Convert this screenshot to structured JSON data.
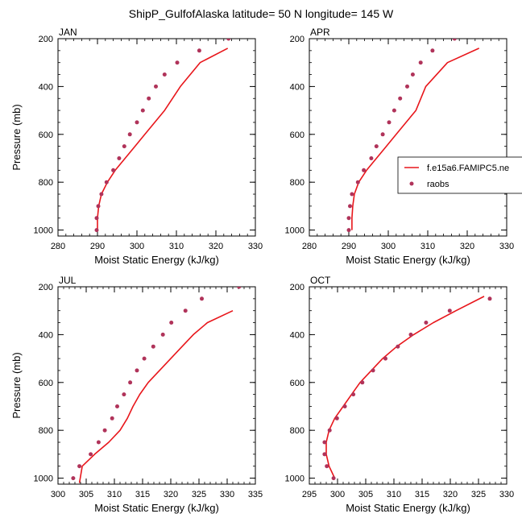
{
  "title": "ShipP_GulfofAlaska  latitude= 50 N longitude= 145 W",
  "colors": {
    "model": "#e8161b",
    "obs": "#b0335a"
  },
  "legend": {
    "entries": [
      {
        "label": "f.e15a6.FAMIPC5.ne",
        "kind": "line"
      },
      {
        "label": "raobs",
        "kind": "marker"
      }
    ]
  },
  "chart_data": [
    {
      "type": "line",
      "panel": "JAN",
      "xlabel": "Moist Static Energy (kJ/kg)",
      "ylabel": "Pressure (mb)",
      "xlim": [
        280,
        330
      ],
      "ylim": [
        200,
        1025
      ],
      "y_inverted": true,
      "xticks": [
        280,
        290,
        300,
        310,
        320,
        330
      ],
      "yticks": [
        200,
        400,
        600,
        800,
        1000
      ],
      "series": [
        {
          "name": "f.e15a6.FAMIPC5.ne",
          "kind": "line",
          "x": [
            290.0,
            290.0,
            290.3,
            291.0,
            292.5,
            294.5,
            297.0,
            299.5,
            302.0,
            304.5,
            307.0,
            311.0,
            316.0,
            323.0
          ],
          "y": [
            1000,
            950,
            900,
            850,
            800,
            750,
            700,
            650,
            600,
            550,
            500,
            400,
            300,
            240
          ]
        },
        {
          "name": "raobs",
          "kind": "scatter",
          "x": [
            289.8,
            289.8,
            290.2,
            291.0,
            292.3,
            294.0,
            295.5,
            296.8,
            298.2,
            300.0,
            301.5,
            303.0,
            304.8,
            307.0,
            310.2,
            315.8,
            323.2
          ],
          "y": [
            1000,
            950,
            900,
            850,
            800,
            750,
            700,
            650,
            600,
            550,
            500,
            450,
            400,
            350,
            300,
            250,
            200
          ]
        }
      ]
    },
    {
      "type": "line",
      "panel": "APR",
      "xlabel": "Moist Static Energy (kJ/kg)",
      "ylabel": "",
      "xlim": [
        280,
        330
      ],
      "ylim": [
        200,
        1025
      ],
      "y_inverted": true,
      "xticks": [
        280,
        290,
        300,
        310,
        320,
        330
      ],
      "yticks": [
        200,
        400,
        600,
        800,
        1000
      ],
      "series": [
        {
          "name": "f.e15a6.FAMIPC5.ne",
          "kind": "line",
          "x": [
            290.8,
            290.8,
            291.0,
            291.4,
            292.5,
            294.5,
            297.0,
            299.5,
            302.0,
            304.5,
            307.0,
            309.5,
            315.0,
            323.0
          ],
          "y": [
            1000,
            950,
            900,
            850,
            800,
            750,
            700,
            650,
            600,
            550,
            500,
            400,
            300,
            240
          ]
        },
        {
          "name": "raobs",
          "kind": "scatter",
          "x": [
            290.0,
            290.0,
            290.3,
            290.8,
            292.3,
            293.8,
            295.7,
            297.0,
            298.6,
            300.2,
            301.5,
            303.0,
            304.8,
            306.2,
            308.2,
            311.2,
            316.8,
            322.8
          ],
          "y": [
            1000,
            950,
            900,
            850,
            800,
            750,
            700,
            650,
            600,
            550,
            500,
            450,
            400,
            350,
            300,
            250,
            200,
            150
          ]
        }
      ]
    },
    {
      "type": "line",
      "panel": "JUL",
      "xlabel": "Moist Static Energy (kJ/kg)",
      "ylabel": "Pressure (mb)",
      "xlim": [
        300,
        335
      ],
      "ylim": [
        200,
        1025
      ],
      "y_inverted": true,
      "xticks": [
        300,
        305,
        310,
        315,
        320,
        325,
        330,
        335
      ],
      "yticks": [
        200,
        400,
        600,
        800,
        1000
      ],
      "series": [
        {
          "name": "f.e15a6.FAMIPC5.ne",
          "kind": "line",
          "x": [
            303.8,
            304.3,
            306.5,
            309.0,
            311.0,
            312.3,
            313.3,
            314.5,
            316.0,
            318.0,
            320.0,
            322.0,
            324.0,
            326.5,
            331.0
          ],
          "y": [
            1020,
            950,
            900,
            850,
            800,
            750,
            700,
            650,
            600,
            550,
            500,
            450,
            400,
            350,
            300
          ]
        },
        {
          "name": "raobs",
          "kind": "scatter",
          "x": [
            302.7,
            303.8,
            305.8,
            307.2,
            308.3,
            309.6,
            310.5,
            311.7,
            312.8,
            314.0,
            315.3,
            316.9,
            318.6,
            320.1,
            322.6,
            325.5,
            332.1
          ],
          "y": [
            1000,
            950,
            900,
            850,
            800,
            750,
            700,
            650,
            600,
            550,
            500,
            450,
            400,
            350,
            300,
            250,
            200
          ]
        }
      ]
    },
    {
      "type": "line",
      "panel": "OCT",
      "xlabel": "Moist Static Energy (kJ/kg)",
      "ylabel": "",
      "xlim": [
        295,
        330
      ],
      "ylim": [
        200,
        1025
      ],
      "y_inverted": true,
      "xticks": [
        295,
        300,
        305,
        310,
        315,
        320,
        325,
        330
      ],
      "yticks": [
        200,
        400,
        600,
        800,
        1000
      ],
      "series": [
        {
          "name": "f.e15a6.FAMIPC5.ne",
          "kind": "line",
          "x": [
            299.5,
            298.5,
            298.0,
            298.0,
            298.5,
            299.5,
            301.0,
            302.5,
            304.0,
            306.0,
            308.0,
            310.5,
            313.5,
            317.0,
            321.0,
            326.0
          ],
          "y": [
            1000,
            950,
            900,
            850,
            800,
            750,
            700,
            650,
            600,
            550,
            500,
            450,
            400,
            350,
            300,
            240
          ]
        },
        {
          "name": "raobs",
          "kind": "scatter",
          "x": [
            299.3,
            298.1,
            297.7,
            297.7,
            298.6,
            299.9,
            301.3,
            302.8,
            304.4,
            306.3,
            308.5,
            310.7,
            313.0,
            315.7,
            319.9,
            327.0
          ],
          "y": [
            1000,
            950,
            900,
            850,
            800,
            750,
            700,
            650,
            600,
            550,
            500,
            450,
            400,
            350,
            300,
            250
          ]
        }
      ]
    }
  ]
}
